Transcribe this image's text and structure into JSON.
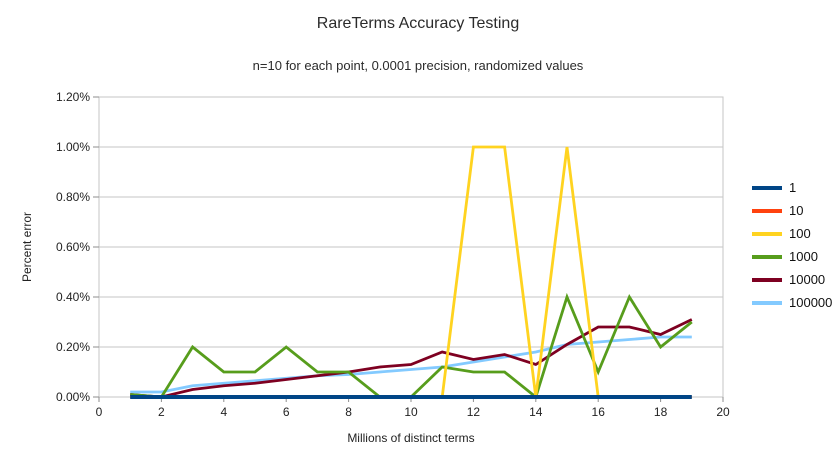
{
  "title": "RareTerms Accuracy Testing",
  "subtitle": "n=10 for each point, 0.0001 precision, randomized values",
  "chart_data": {
    "type": "line",
    "title": "RareTerms Accuracy Testing",
    "subtitle": "n=10 for each point, 0.0001 precision, randomized values",
    "xlabel": "Millions of distinct terms",
    "ylabel": "Percent error",
    "xlim": [
      0,
      20
    ],
    "ylim_percent": [
      0,
      1.2
    ],
    "grid": true,
    "grid_color": "#C5C5C5",
    "tick_color": "#8E8E8E",
    "legend_position": "right",
    "x_ticks": [
      0,
      2,
      4,
      6,
      8,
      10,
      12,
      14,
      16,
      18,
      20
    ],
    "y_tick_labels": [
      "0.00%",
      "0.20%",
      "0.40%",
      "0.60%",
      "0.80%",
      "1.00%",
      "1.20%"
    ],
    "x": [
      1,
      2,
      3,
      4,
      5,
      6,
      7,
      8,
      9,
      10,
      11,
      12,
      13,
      14,
      15,
      16,
      17,
      18,
      19
    ],
    "series": [
      {
        "name": "1",
        "color": "#004586",
        "values": [
          0,
          0,
          0,
          0,
          0,
          0,
          0,
          0,
          0,
          0,
          0,
          0,
          0,
          0,
          0,
          0,
          0,
          0,
          0
        ]
      },
      {
        "name": "10",
        "color": "#FF420E",
        "values": [
          0,
          0,
          0,
          0,
          0,
          0,
          0,
          0,
          0,
          0,
          0,
          0,
          0,
          0,
          0,
          0,
          0,
          0,
          0
        ]
      },
      {
        "name": "100",
        "color": "#FFD320",
        "values": [
          0,
          0,
          0,
          0,
          0,
          0,
          0,
          0,
          0,
          0,
          0,
          1.0,
          1.0,
          0,
          1.0,
          0,
          0,
          0,
          0
        ]
      },
      {
        "name": "1000",
        "color": "#579D1C",
        "values": [
          0.01,
          0,
          0.2,
          0.1,
          0.1,
          0.2,
          0.1,
          0.1,
          0,
          0,
          0.12,
          0.1,
          0.1,
          0,
          0.4,
          0.1,
          0.4,
          0.2,
          0.3
        ]
      },
      {
        "name": "10000",
        "color": "#7E0021",
        "values": [
          0.01,
          0,
          0.03,
          0.045,
          0.055,
          0.07,
          0.085,
          0.1,
          0.12,
          0.13,
          0.18,
          0.15,
          0.17,
          0.13,
          0.21,
          0.28,
          0.28,
          0.25,
          0.31
        ]
      },
      {
        "name": "100000",
        "color": "#83CAFF",
        "values": [
          0.02,
          0.02,
          0.045,
          0.055,
          0.065,
          0.075,
          0.085,
          0.09,
          0.1,
          0.11,
          0.12,
          0.14,
          0.16,
          0.18,
          0.21,
          0.22,
          0.23,
          0.24,
          0.24
        ]
      }
    ],
    "draw_order": [
      "100000",
      "10000",
      "1000",
      "100",
      "10",
      "1"
    ]
  }
}
